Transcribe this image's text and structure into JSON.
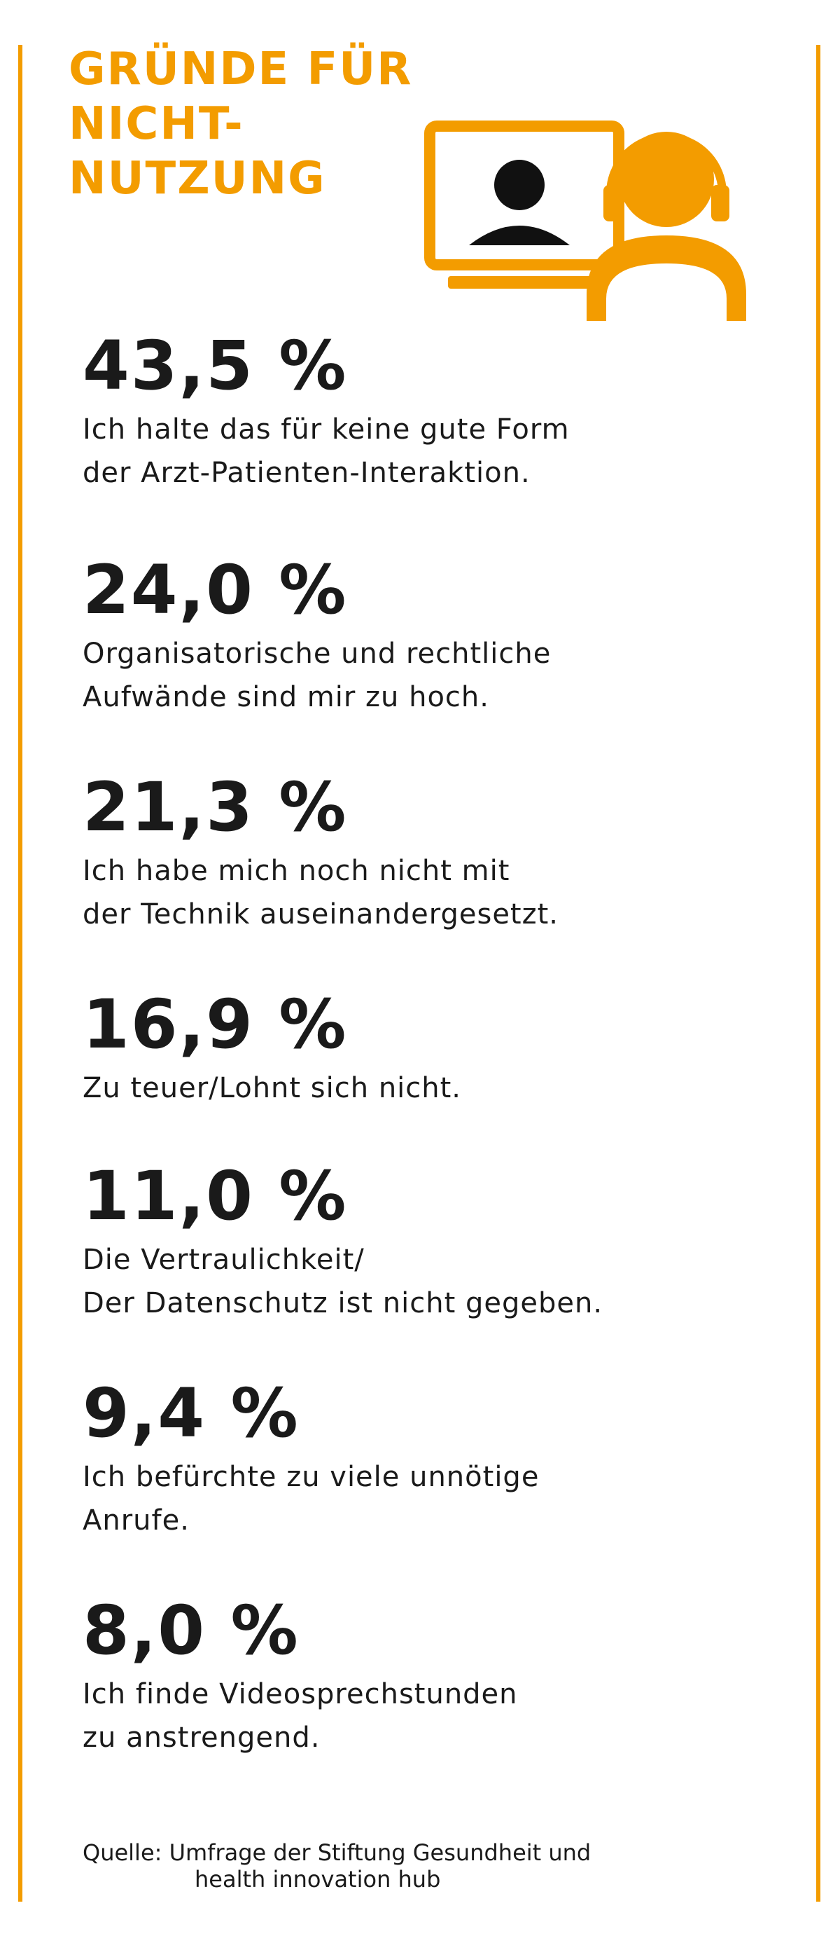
{
  "title_lines": [
    "GRÜNDE FÜR",
    "NICHT-",
    "NUTZUNG"
  ],
  "illustration": {
    "icon": "video-consultation-icon",
    "accent_color": "#f39c00",
    "person_color": "#111111"
  },
  "chart_data": {
    "type": "table",
    "title": "GRÜNDE FÜR NICHT-NUTZUNG",
    "unit": "%",
    "rows": [
      {
        "value": 43.5,
        "value_label": "43,5 %",
        "label_lines": [
          "Ich halte das für keine gute Form",
          "der Arzt-Patienten-Interaktion."
        ]
      },
      {
        "value": 24.0,
        "value_label": "24,0 %",
        "label_lines": [
          "Organisatorische und rechtliche",
          "Aufwände sind mir zu hoch."
        ]
      },
      {
        "value": 21.3,
        "value_label": "21,3 %",
        "label_lines": [
          "Ich habe mich noch nicht mit",
          "der Technik auseinandergesetzt."
        ]
      },
      {
        "value": 16.9,
        "value_label": "16,9 %",
        "label_lines": [
          "Zu teuer/Lohnt sich nicht."
        ]
      },
      {
        "value": 11.0,
        "value_label": "11,0 %",
        "label_lines": [
          "Die Vertraulichkeit/",
          "Der Datenschutz ist nicht gegeben."
        ]
      },
      {
        "value": 9.4,
        "value_label": "9,4 %",
        "label_lines": [
          "Ich befürchte zu viele unnötige",
          "Anrufe."
        ]
      },
      {
        "value": 8.0,
        "value_label": "8,0 %",
        "label_lines": [
          "Ich finde Videosprechstunden",
          "zu anstrengend."
        ]
      }
    ]
  },
  "source_lines": [
    "Quelle: Umfrage der Stiftung Gesundheit und",
    "health innovation hub"
  ],
  "colors": {
    "accent": "#f39c00",
    "text": "#1a1a1a",
    "background": "#ffffff"
  }
}
